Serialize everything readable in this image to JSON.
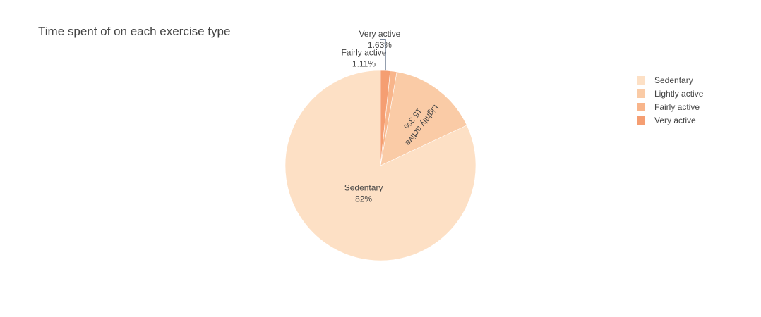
{
  "chart_data": {
    "type": "pie",
    "title": "Time spent of on each exercise type",
    "slices": [
      {
        "label": "Sedentary",
        "value": 82.0,
        "percent_text": "82%",
        "color": "#fde0c5"
      },
      {
        "label": "Lightly active",
        "value": 15.3,
        "percent_text": "15.3%",
        "color": "#facba6"
      },
      {
        "label": "Fairly active",
        "value": 1.11,
        "percent_text": "1.11%",
        "color": "#f8b58b"
      },
      {
        "label": "Very active",
        "value": 1.63,
        "percent_text": "1.63%",
        "color": "#f59e72"
      }
    ],
    "direction": "counterclockwise",
    "start_angle_deg": 0,
    "legend": {
      "position": "right",
      "entries": [
        "Sedentary",
        "Lightly active",
        "Fairly active",
        "Very active"
      ]
    }
  }
}
